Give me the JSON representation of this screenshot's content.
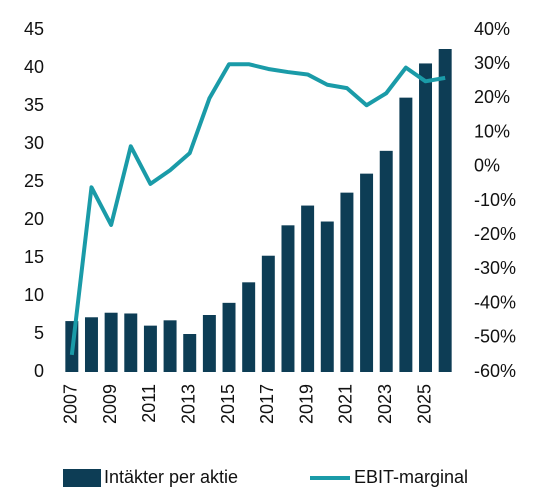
{
  "chart_data": {
    "type": "bar_line",
    "categories": [
      "2007",
      null,
      "2009",
      null,
      "2011",
      null,
      "2013",
      null,
      "2015",
      null,
      "2017",
      null,
      "2019",
      null,
      "2021",
      null,
      "2023",
      null,
      "2025",
      null
    ],
    "series": [
      {
        "name": "Intäkter per aktie",
        "color": "#0d3d55",
        "type": "bar",
        "values": [
          6.7,
          7.2,
          7.8,
          7.7,
          6.1,
          6.8,
          5.0,
          7.5,
          9.1,
          11.8,
          15.3,
          19.3,
          21.9,
          19.8,
          23.6,
          26.1,
          29.1,
          36.1,
          40.6,
          42.5
        ]
      },
      {
        "name": "EBIT-marginal",
        "color": "#1a9ba8",
        "type": "line",
        "axis": "y2",
        "values": [
          -55,
          -6,
          -17,
          6,
          -5,
          -1,
          4,
          20,
          30,
          30,
          28.6,
          27.7,
          27,
          24,
          23,
          18,
          21.5,
          29,
          25,
          26
        ]
      }
    ],
    "ylim": [
      0,
      45
    ],
    "yticks": [
      0,
      5,
      10,
      15,
      20,
      25,
      30,
      35,
      40,
      45
    ],
    "y2lim": [
      -60,
      40
    ],
    "y2ticks": [
      {
        "value": -60,
        "label": "-60%"
      },
      {
        "value": -50,
        "label": "-50%"
      },
      {
        "value": -40,
        "label": "-40%"
      },
      {
        "value": -30,
        "label": "-30%"
      },
      {
        "value": -20,
        "label": "-20%"
      },
      {
        "value": -10,
        "label": "-10%"
      },
      {
        "value": 0,
        "label": "0%"
      },
      {
        "value": 10,
        "label": "10%"
      },
      {
        "value": 20,
        "label": "20%"
      },
      {
        "value": 30,
        "label": "30%"
      },
      {
        "value": 40,
        "label": "40%"
      }
    ],
    "legend": "bottom"
  }
}
